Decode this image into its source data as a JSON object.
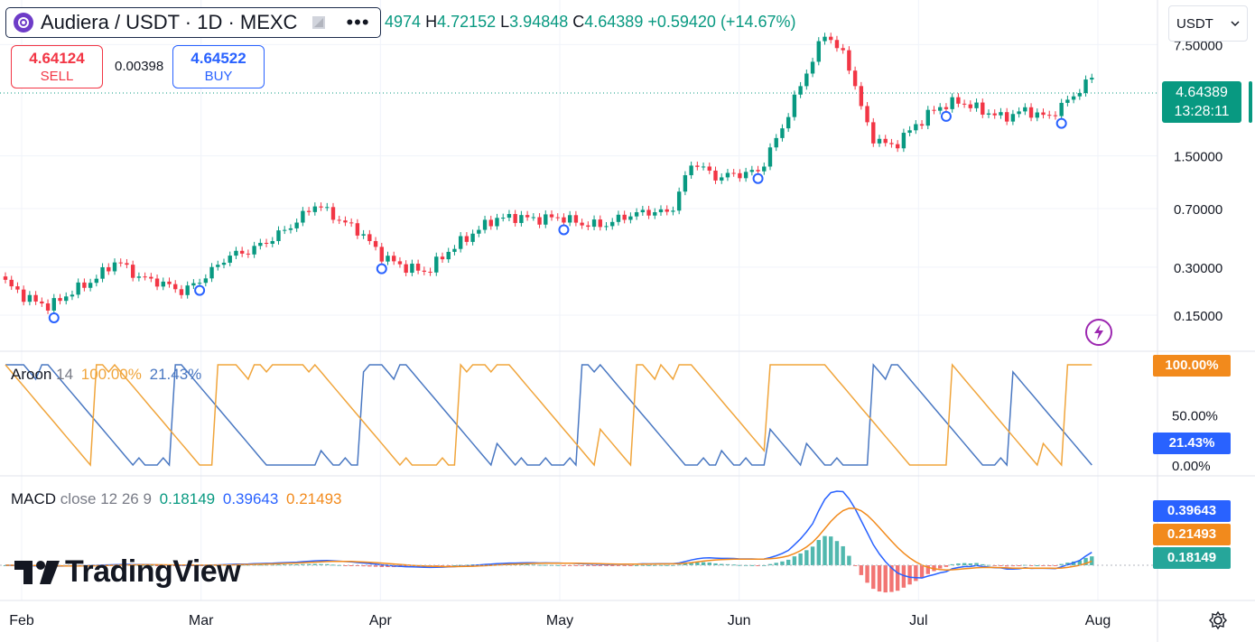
{
  "header": {
    "symbol_title": "Audiera / USDT · 1D · MEXC",
    "more_icon": "•••",
    "ohlc": {
      "open_label": "",
      "open": "4974",
      "high_label": "H",
      "high": "4.72152",
      "low_label": "L",
      "low": "3.94848",
      "close_label": "C",
      "close": "4.64389",
      "change": "+0.59420 (+14.67%)"
    },
    "currency_select": "USDT",
    "sell": {
      "price": "4.64124",
      "label": "SELL"
    },
    "buy": {
      "price": "4.64522",
      "label": "BUY"
    },
    "spread": "0.00398"
  },
  "price_axis": {
    "ticks": [
      "7.50000",
      "1.50000",
      "0.70000",
      "0.30000",
      "0.15000"
    ],
    "last_price": "4.64389",
    "countdown": "13:28:11"
  },
  "time_axis": {
    "labels": [
      "Feb",
      "Mar",
      "Apr",
      "May",
      "Jun",
      "Jul",
      "Aug"
    ]
  },
  "aroon": {
    "title": "Aroon",
    "length": "14",
    "up_value": "100.00%",
    "down_value": "21.43%",
    "axis_ticks": [
      "50.00%",
      "0.00%"
    ],
    "up_label": "100.00%",
    "down_label": "21.43%"
  },
  "macd": {
    "title": "MACD",
    "params": "close 12 26 9",
    "histogram_value": "0.18149",
    "macd_value": "0.39643",
    "signal_value": "0.21493",
    "macd_label": "0.39643",
    "signal_label": "0.21493",
    "hist_label": "0.18149"
  },
  "branding": {
    "logo_text": "TradingView"
  },
  "colors": {
    "up": "#089981",
    "down": "#f23645",
    "aroon_up": "#f0a53c",
    "aroon_down": "#4a78c2",
    "macd": "#2962ff",
    "signal": "#f28a1c",
    "hist_up": "#26a69a",
    "hist_down": "#ef5350"
  },
  "chart_data": [
    {
      "type": "candlestick",
      "title": "Audiera / USDT · 1D · MEXC",
      "scale": "log",
      "ylim": [
        0.1,
        11
      ],
      "x_labels": [
        "Feb",
        "Mar",
        "Apr",
        "May",
        "Jun",
        "Jul",
        "Aug"
      ],
      "y_ticks": [
        7.5,
        1.5,
        0.7,
        0.3,
        0.15
      ],
      "points": [
        {
          "x": "Feb",
          "close": 0.24
        },
        {
          "x": "Feb",
          "close": 0.19
        },
        {
          "x": "Feb",
          "close": 0.17
        },
        {
          "x": "Feb",
          "close": 0.21
        },
        {
          "x": "Feb",
          "close": 0.25
        },
        {
          "x": "Feb",
          "close": 0.33
        },
        {
          "x": "Feb",
          "close": 0.26
        },
        {
          "x": "Feb",
          "close": 0.24
        },
        {
          "x": "Mar",
          "close": 0.21
        },
        {
          "x": "Mar",
          "close": 0.26
        },
        {
          "x": "Mar",
          "close": 0.35
        },
        {
          "x": "Mar",
          "close": 0.38
        },
        {
          "x": "Mar",
          "close": 0.45
        },
        {
          "x": "Mar",
          "close": 0.56
        },
        {
          "x": "Mar",
          "close": 0.75
        },
        {
          "x": "Mar",
          "close": 0.6
        },
        {
          "x": "Apr",
          "close": 0.5
        },
        {
          "x": "Apr",
          "close": 0.35
        },
        {
          "x": "Apr",
          "close": 0.3
        },
        {
          "x": "Apr",
          "close": 0.28
        },
        {
          "x": "Apr",
          "close": 0.38
        },
        {
          "x": "Apr",
          "close": 0.48
        },
        {
          "x": "Apr",
          "close": 0.6
        },
        {
          "x": "Apr",
          "close": 0.62
        },
        {
          "x": "May",
          "close": 0.6
        },
        {
          "x": "May",
          "close": 0.62
        },
        {
          "x": "May",
          "close": 0.56
        },
        {
          "x": "May",
          "close": 0.55
        },
        {
          "x": "May",
          "close": 0.63
        },
        {
          "x": "May",
          "close": 0.67
        },
        {
          "x": "May",
          "close": 0.66
        },
        {
          "x": "May",
          "close": 1.4
        },
        {
          "x": "Jun",
          "close": 1.1
        },
        {
          "x": "Jun",
          "close": 1.15
        },
        {
          "x": "Jun",
          "close": 1.2
        },
        {
          "x": "Jun",
          "close": 2.2
        },
        {
          "x": "Jun",
          "close": 4.6
        },
        {
          "x": "Jun",
          "close": 9.0
        },
        {
          "x": "Jun",
          "close": 5.8
        },
        {
          "x": "Jun",
          "close": 2.0
        },
        {
          "x": "Jul",
          "close": 1.7
        },
        {
          "x": "Jul",
          "close": 2.3
        },
        {
          "x": "Jul",
          "close": 3.0
        },
        {
          "x": "Jul",
          "close": 3.3
        },
        {
          "x": "Jul",
          "close": 2.9
        },
        {
          "x": "Jul",
          "close": 2.6
        },
        {
          "x": "Jul",
          "close": 2.9
        },
        {
          "x": "Jul",
          "close": 2.6
        },
        {
          "x": "Aug",
          "close": 3.4
        },
        {
          "x": "Aug",
          "close": 4.64
        }
      ]
    },
    {
      "type": "line",
      "title": "Aroon 14",
      "ylim": [
        0,
        100
      ],
      "series": [
        {
          "name": "Aroon Up",
          "last": 100.0
        },
        {
          "name": "Aroon Down",
          "last": 21.43
        }
      ]
    },
    {
      "type": "line",
      "title": "MACD close 12 26 9",
      "series": [
        {
          "name": "MACD",
          "last": 0.39643
        },
        {
          "name": "Signal",
          "last": 0.21493
        },
        {
          "name": "Histogram",
          "last": 0.18149
        }
      ]
    }
  ]
}
